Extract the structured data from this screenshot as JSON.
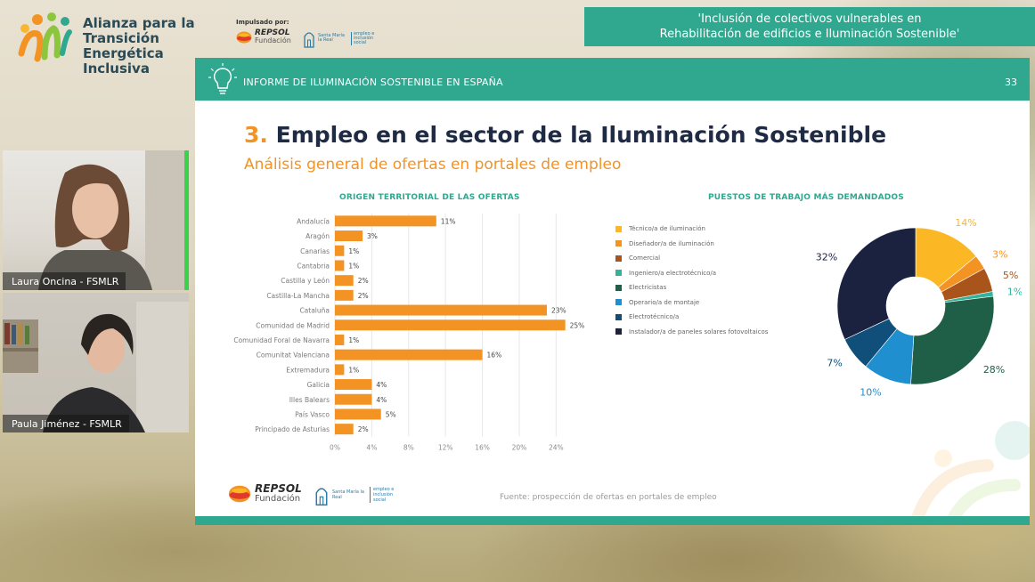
{
  "colors": {
    "teal": "#2fa88f",
    "orange": "#f39323",
    "navy": "#1f2a44"
  },
  "branding": {
    "title": "Alianza para la\nTransición Energética\nInclusiva",
    "impulsado": "Impulsado por:",
    "repsol": "REPSOL",
    "fundacion": "Fundación",
    "santa_maria": "Santa María la Real",
    "santa_maria_tag": "empleo e inclusión social"
  },
  "banner": "'Inclusión de colectivos vulnerables en\nRehabilitación de edificios e Iluminación Sostenible'",
  "slide": {
    "header_icon": "lightbulb-icon",
    "report_title": "INFORME DE ILUMINACIÓN SOSTENIBLE EN ESPAÑA",
    "page_number": "33",
    "section_number": "3.",
    "section_title": "Empleo en el sector de la Iluminación Sostenible",
    "subtitle": "Análisis general de ofertas en portales de empleo",
    "source": "Fuente: prospección de ofertas en portales de empleo",
    "footer_repsol": "REPSOL",
    "footer_fundacion": "Fundación",
    "footer_santa_maria": "Santa María la Real",
    "footer_santa_maria_tag": "empleo e inclusión social"
  },
  "chart_data": [
    {
      "type": "bar",
      "orientation": "horizontal",
      "title": "ORIGEN TERRITORIAL DE LAS OFERTAS",
      "categories": [
        "Andalucía",
        "Aragón",
        "Canarias",
        "Cantabria",
        "Castilla y León",
        "Castilla-La Mancha",
        "Cataluña",
        "Comunidad de Madrid",
        "Comunidad Foral de Navarra",
        "Comunitat Valenciana",
        "Extremadura",
        "Galicia",
        "Illes Balears",
        "País Vasco",
        "Principado de Asturias"
      ],
      "values": [
        11,
        3,
        1,
        1,
        2,
        2,
        23,
        25,
        1,
        16,
        1,
        4,
        4,
        5,
        2
      ],
      "value_labels": [
        "11%",
        "3%",
        "1%",
        "1%",
        "2%",
        "2%",
        "23%",
        "25%",
        "1%",
        "16%",
        "1%",
        "4%",
        "4%",
        "5%",
        "2%"
      ],
      "xlim": [
        0,
        26
      ],
      "xticks": [
        0,
        4,
        8,
        12,
        16,
        20,
        24
      ],
      "xtick_labels": [
        "0%",
        "4%",
        "8%",
        "12%",
        "16%",
        "20%",
        "24%"
      ],
      "grid": true,
      "color": "#f39323"
    },
    {
      "type": "pie",
      "donut": true,
      "title": "PUESTOS DE TRABAJO MÁS DEMANDADOS",
      "legend_position": "left",
      "slices": [
        {
          "label": "Técnico/a de iluminación",
          "value": 14,
          "value_label": "14%",
          "color": "#fbb724"
        },
        {
          "label": "Diseñador/a de iluminación",
          "value": 3,
          "value_label": "3%",
          "color": "#f39323"
        },
        {
          "label": "Comercial",
          "value": 5,
          "value_label": "5%",
          "color": "#a8541b"
        },
        {
          "label": "Ingeniero/a electrotécnico/a",
          "value": 1,
          "value_label": "1%",
          "color": "#34b39b"
        },
        {
          "label": "Electricistas",
          "value": 28,
          "value_label": "28%",
          "color": "#1f5e47"
        },
        {
          "label": "Operario/a de montaje",
          "value": 10,
          "value_label": "10%",
          "color": "#1f8fd0"
        },
        {
          "label": "Electrotécnico/a",
          "value": 7,
          "value_label": "7%",
          "color": "#0f4f7a"
        },
        {
          "label": "Instalador/a de paneles solares fotovoltaicos",
          "value": 32,
          "value_label": "32%",
          "color": "#1b2240"
        }
      ]
    }
  ],
  "participants": [
    {
      "name": "Laura Oncina - FSMLR"
    },
    {
      "name": "Paula Jiménez - FSMLR"
    }
  ]
}
